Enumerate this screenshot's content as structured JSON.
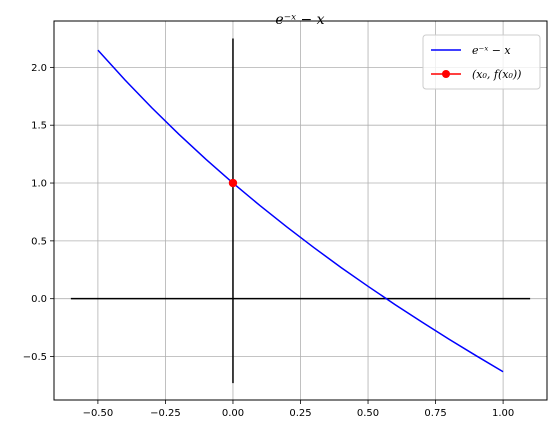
{
  "chart_data": {
    "type": "line",
    "title": "e⁻ˣ − x",
    "xlabel": "",
    "ylabel": "",
    "xlim": [
      -0.6625,
      1.1625
    ],
    "ylim": [
      -0.876,
      2.401
    ],
    "grid": true,
    "legend_placement": "top-right",
    "x_ticks": [
      -0.5,
      -0.25,
      0.0,
      0.25,
      0.5,
      0.75,
      1.0
    ],
    "x_tick_labels": [
      "−0.50",
      "−0.25",
      "0.00",
      "0.25",
      "0.50",
      "0.75",
      "1.00"
    ],
    "y_ticks": [
      -0.5,
      0.0,
      0.5,
      1.0,
      1.5,
      2.0
    ],
    "y_tick_labels": [
      "−0.5",
      "0.0",
      "0.5",
      "1.0",
      "1.5",
      "2.0"
    ],
    "series": [
      {
        "name": "e⁻ˣ − x",
        "color": "#0000ff",
        "x": [
          -0.5,
          -0.4,
          -0.3,
          -0.2,
          -0.1,
          0.0,
          0.1,
          0.2,
          0.3,
          0.4,
          0.5,
          0.6,
          0.7,
          0.8,
          0.9,
          1.0
        ],
        "y": [
          2.149,
          1.892,
          1.65,
          1.421,
          1.205,
          1.0,
          0.805,
          0.619,
          0.441,
          0.27,
          0.107,
          -0.051,
          -0.203,
          -0.351,
          -0.493,
          -0.632
        ]
      },
      {
        "name": "(x₀, f(x₀))",
        "color": "#ff0000",
        "marker": "circle",
        "x": [
          0.0
        ],
        "y": [
          1.0
        ]
      }
    ],
    "reference_lines": [
      {
        "color": "#000000",
        "x": [
          -0.6,
          1.1
        ],
        "y": [
          0.0,
          0.0
        ]
      },
      {
        "color": "#000000",
        "x": [
          0.0,
          0.0
        ],
        "y": [
          -0.73,
          2.25
        ]
      }
    ]
  }
}
